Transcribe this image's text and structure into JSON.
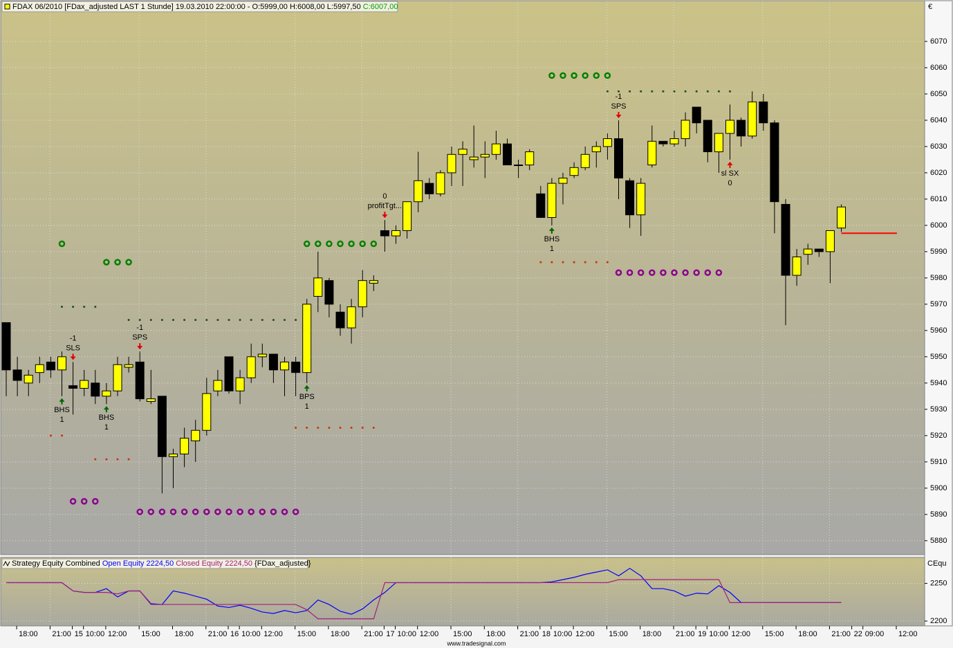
{
  "chart_data": [
    {
      "type": "candlestick",
      "title": "FDAX 06/2010 [FDax_adjusted LAST 1 Stunde] 19.03.2010 22:00:00 - O:5999,00 H:6008,00 L:5997,50",
      "last_value_label": "C:6007,00",
      "currency": "€",
      "categories": [
        null,
        "18:00",
        null,
        null,
        "21:00",
        null,
        "15",
        "10:00",
        null,
        "12:00",
        null,
        null,
        "15:00",
        null,
        null,
        "18:00",
        null,
        null,
        "21:00",
        null,
        "16",
        "10:00",
        null,
        "12:00",
        null,
        null,
        "15:00",
        null,
        null,
        "18:00",
        null,
        null,
        "21:00",
        null,
        "17",
        "10:00",
        null,
        "12:00",
        null,
        null,
        "15:00",
        null,
        null,
        "18:00",
        null,
        null,
        "21:00",
        null,
        "18",
        "10:00",
        null,
        "12:00",
        null,
        null,
        "15:00",
        null,
        null,
        "18:00",
        null,
        null,
        "21:00",
        null,
        "19",
        "10:00",
        null,
        "12:00",
        null,
        null,
        "15:00",
        null,
        null,
        "18:00",
        null,
        null,
        "21:00",
        null,
        "22",
        "09:00",
        null,
        null,
        "12:00"
      ],
      "open": [
        5963,
        5945,
        5940,
        5944,
        5948,
        5945,
        5939,
        5938,
        5940,
        5935,
        5937,
        5946,
        5948,
        5933,
        5935,
        5912,
        5913,
        5918,
        5922,
        5937,
        5950,
        5937,
        5942,
        5950,
        5951,
        5945,
        5948,
        5944,
        5973,
        5979,
        5967,
        5961,
        5969,
        5978,
        5998,
        5996,
        5998,
        6009,
        6016,
        6012,
        6020,
        6027,
        6025,
        6026,
        6027,
        6031,
        6023,
        6023,
        6012,
        6003,
        6016,
        6019,
        6022,
        6028,
        6030,
        6033,
        6017,
        6004,
        6023,
        6032,
        6031,
        6033,
        6045,
        6040,
        6028,
        6035,
        6040,
        6034,
        6047,
        6039,
        6008,
        5981,
        5989,
        5991,
        5990,
        5999,
        null,
        null,
        null,
        null,
        null
      ],
      "high": [
        5963,
        5950,
        5945,
        5950,
        5950,
        5952,
        5948,
        5945,
        5945,
        5940,
        5950,
        5950,
        5952,
        5945,
        5935,
        5915,
        5923,
        5926,
        5942,
        5945,
        5950,
        5945,
        5955,
        5955,
        5951,
        5950,
        5950,
        5972,
        5990,
        5980,
        5970,
        5972,
        5983,
        5981,
        6002,
        6000,
        6009,
        6028,
        6018,
        6021,
        6030,
        6032,
        6038,
        6032,
        6036,
        6033,
        6025,
        6029,
        6015,
        6018,
        6020,
        6024,
        6030,
        6032,
        6035,
        6040,
        6018,
        6018,
        6038,
        6032,
        6036,
        6043,
        6045,
        6040,
        6035,
        6046,
        6041,
        6051,
        6050,
        6040,
        6010,
        5991,
        5993,
        5991,
        5998,
        6008,
        null,
        null,
        null,
        null,
        null
      ],
      "low": [
        5935,
        5935,
        5935,
        5940,
        5942,
        5935,
        5928,
        5935,
        5932,
        5932,
        5935,
        5944,
        5933,
        5932,
        5898,
        5900,
        5908,
        5910,
        5920,
        5935,
        5936,
        5932,
        5940,
        5946,
        5940,
        5935,
        5935,
        5940,
        5967,
        5965,
        5958,
        5955,
        5965,
        5975,
        5990,
        5993,
        5995,
        6005,
        6010,
        6011,
        6015,
        6015,
        6022,
        6018,
        6025,
        6023,
        6018,
        6021,
        6003,
        6000,
        6008,
        6018,
        6021,
        6022,
        6025,
        6010,
        5999,
        5996,
        6022,
        6030,
        6030,
        6030,
        6035,
        6024,
        6020,
        6025,
        6030,
        6033,
        6036,
        5997,
        5962,
        5977,
        5985,
        5988,
        5978,
        5997.5,
        null,
        null,
        null,
        null,
        null
      ],
      "close": [
        5945,
        5941,
        5943,
        5947,
        5945,
        5950,
        5938,
        5941,
        5935,
        5937,
        5947,
        5947,
        5934,
        5934,
        5912,
        5913,
        5919,
        5922,
        5936,
        5941,
        5937,
        5942,
        5950,
        5951,
        5945,
        5948,
        5944,
        5970,
        5980,
        5970,
        5961,
        5969,
        5979,
        5979,
        5996,
        5998,
        6009,
        6017,
        6012,
        6020,
        6027,
        6029,
        6026,
        6027,
        6031,
        6023,
        6023,
        6028,
        6003,
        6016,
        6018,
        6022,
        6027,
        6030,
        6033,
        6018,
        6004,
        6016,
        6032,
        6031,
        6033,
        6040,
        6039,
        6028,
        6035,
        6040,
        6034,
        6047,
        6039,
        6009,
        5981,
        5988,
        5991,
        5990,
        5998,
        6007,
        null,
        null,
        null,
        null,
        null
      ],
      "up_color": "#ffff00",
      "down_color": "#000000",
      "ylim": [
        5874.7,
        6085.5
      ],
      "yticks": [
        5880,
        5890,
        5900,
        5910,
        5920,
        5930,
        5940,
        5950,
        5960,
        5970,
        5980,
        5990,
        6000,
        6010,
        6020,
        6030,
        6040,
        6050,
        6060,
        6070
      ],
      "grid": true,
      "xgrid": [
        4,
        12,
        18,
        26,
        32,
        40,
        46,
        54,
        60,
        68,
        74
      ],
      "levels": [
        {
          "style": "circle",
          "color": "#008000",
          "value": 5993,
          "from": 5,
          "to": 5
        },
        {
          "style": "circle",
          "color": "#008000",
          "value": 5986,
          "from": 9,
          "to": 11
        },
        {
          "style": "circle",
          "color": "#008000",
          "value": 5993,
          "from": 27,
          "to": 33
        },
        {
          "style": "circle",
          "color": "#008000",
          "value": 6057,
          "from": 49,
          "to": 54
        },
        {
          "style": "circle",
          "color": "#8b008b",
          "value": 5895,
          "from": 6,
          "to": 8
        },
        {
          "style": "circle",
          "color": "#8b008b",
          "value": 5891,
          "from": 12,
          "to": 26
        },
        {
          "style": "circle",
          "color": "#8b008b",
          "value": 5982,
          "from": 55,
          "to": 64
        },
        {
          "style": "dot",
          "color": "#1f4f1f",
          "value": 5969,
          "from": 5,
          "to": 8
        },
        {
          "style": "dot",
          "color": "#1f4f1f",
          "value": 5964,
          "from": 11,
          "to": 26
        },
        {
          "style": "dot",
          "color": "#1f4f1f",
          "value": 6051,
          "from": 54,
          "to": 65
        },
        {
          "style": "dot",
          "color": "#cc3300",
          "value": 5920,
          "from": 4,
          "to": 5
        },
        {
          "style": "dot",
          "color": "#cc3300",
          "value": 5911,
          "from": 8,
          "to": 11
        },
        {
          "style": "dot",
          "color": "#cc3300",
          "value": 5923,
          "from": 26,
          "to": 33
        },
        {
          "style": "dot",
          "color": "#cc3300",
          "value": 5986,
          "from": 48,
          "to": 54
        },
        {
          "style": "line",
          "color": "#ff0000",
          "value": 5997,
          "from": 75,
          "to": 79
        }
      ],
      "annotations": [
        {
          "at": 5,
          "position": "below",
          "color": "#006400",
          "lines": [
            "BHS",
            "1"
          ]
        },
        {
          "at": 6,
          "position": "above",
          "color": "#e00000",
          "lines": [
            "-1",
            "SLS"
          ]
        },
        {
          "at": 9,
          "position": "below",
          "color": "#006400",
          "lines": [
            "BHS",
            "1"
          ]
        },
        {
          "at": 12,
          "position": "above",
          "color": "#e00000",
          "lines": [
            "-1",
            "SPS"
          ]
        },
        {
          "at": 27,
          "position": "below",
          "color": "#006400",
          "lines": [
            "BPS",
            "1"
          ]
        },
        {
          "at": 34,
          "position": "above",
          "color": "#e00000",
          "lines": [
            "0",
            "profitTgt..."
          ]
        },
        {
          "at": 49,
          "position": "below",
          "color": "#006400",
          "lines": [
            "BHS",
            "1"
          ]
        },
        {
          "at": 55,
          "position": "above",
          "color": "#e00000",
          "lines": [
            "-1",
            "SPS"
          ]
        },
        {
          "at": 65,
          "position": "below",
          "color": "#e00000",
          "lines": [
            "sl SX",
            "0"
          ]
        }
      ]
    },
    {
      "type": "line",
      "title": "Strategy Equity Combined",
      "subtitle": "{FDax_adjusted}",
      "axis_label": "CEqu",
      "series": [
        {
          "name": "Open Equity 2224,50",
          "color": "#0000ff",
          "values": [
            2251,
            2251,
            2251,
            2251,
            2251,
            2251,
            2240,
            2238,
            2238,
            2243,
            2232,
            2240,
            2240,
            2223,
            2222,
            2240,
            2237,
            2233,
            2229,
            2220,
            2218,
            2221,
            2217,
            2212,
            2210,
            2214,
            2211,
            2214,
            2228,
            2222,
            2213,
            2209,
            2216,
            2228,
            2238,
            2251,
            2251,
            2251,
            2251,
            2251,
            2251,
            2251,
            2251,
            2251,
            2251,
            2251,
            2251,
            2251,
            2251,
            2252,
            2255,
            2258,
            2262,
            2265,
            2268,
            2260,
            2270,
            2260,
            2243,
            2243,
            2240,
            2233,
            2237,
            2236,
            2247,
            2238,
            2224.5,
            2224.5,
            2224.5,
            2224.5,
            2224.5,
            2224.5,
            2224.5,
            2224.5,
            2224.5,
            2224.5,
            null,
            null,
            null,
            null,
            null
          ]
        },
        {
          "name": "Closed Equity 2224,50",
          "color": "#a0207a",
          "values": [
            2251,
            2251,
            2251,
            2251,
            2251,
            2251,
            2240,
            2238,
            2238,
            2238,
            2236,
            2240,
            2240,
            2222,
            2222,
            2222,
            2222,
            2222,
            2222,
            2222,
            2222,
            2222,
            2222,
            2222,
            2222,
            2222,
            2222,
            2215,
            2203,
            2203,
            2203,
            2203,
            2203,
            2203,
            2251,
            2251,
            2251,
            2251,
            2251,
            2251,
            2251,
            2251,
            2251,
            2251,
            2251,
            2251,
            2251,
            2251,
            2251,
            2251,
            2251,
            2251,
            2251,
            2251,
            2251,
            2255,
            2255,
            2255,
            2255,
            2255,
            2255,
            2255,
            2255,
            2255,
            2255,
            2224.5,
            2224.5,
            2224.5,
            2224.5,
            2224.5,
            2224.5,
            2224.5,
            2224.5,
            2224.5,
            2224.5,
            2224.5,
            null,
            null,
            null,
            null,
            null
          ]
        }
      ],
      "ylim": [
        2193.6,
        2284.5
      ],
      "yticks": [
        2200,
        2250
      ],
      "grid": true
    }
  ],
  "footer": "www.tradesignal.com"
}
